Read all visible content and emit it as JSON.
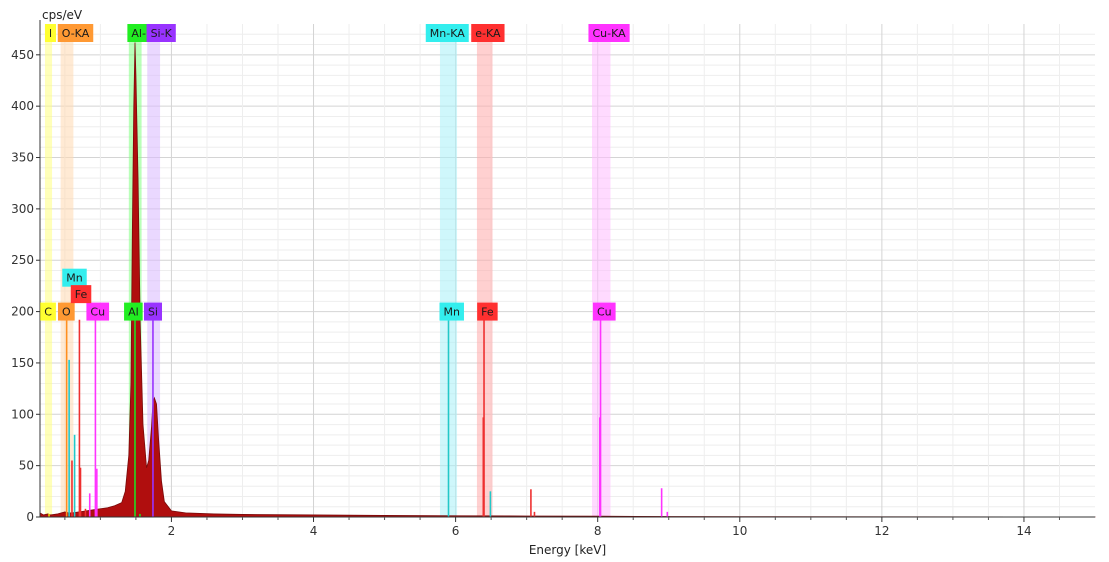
{
  "chart_data": {
    "type": "line",
    "title": "",
    "ylabel": "cps/eV",
    "xlabel": "Energy [keV]",
    "xlim": [
      0.15,
      15.0
    ],
    "ylim": [
      0,
      480
    ],
    "grid": true,
    "x_ticks": [
      2,
      4,
      6,
      8,
      10,
      12,
      14
    ],
    "y_ticks": [
      0,
      50,
      100,
      150,
      200,
      250,
      300,
      350,
      400,
      450
    ],
    "x_tick_labels": [
      "2",
      "4",
      "6",
      "8",
      "10",
      "12",
      "14"
    ],
    "y_tick_labels": [
      "0",
      "50",
      "100",
      "150",
      "200",
      "250",
      "300",
      "350",
      "400",
      "450"
    ],
    "spectrum": {
      "color": "#b00e0e",
      "points": [
        [
          0.15,
          4
        ],
        [
          0.2,
          2
        ],
        [
          0.26,
          3
        ],
        [
          0.3,
          2
        ],
        [
          0.4,
          3
        ],
        [
          0.5,
          5
        ],
        [
          0.55,
          4
        ],
        [
          0.6,
          4
        ],
        [
          0.7,
          5
        ],
        [
          0.8,
          6
        ],
        [
          0.9,
          7
        ],
        [
          1.0,
          8
        ],
        [
          1.1,
          9
        ],
        [
          1.2,
          11
        ],
        [
          1.3,
          14
        ],
        [
          1.35,
          25
        ],
        [
          1.4,
          60
        ],
        [
          1.43,
          130
        ],
        [
          1.45,
          280
        ],
        [
          1.47,
          400
        ],
        [
          1.487,
          462
        ],
        [
          1.5,
          430
        ],
        [
          1.53,
          330
        ],
        [
          1.56,
          190
        ],
        [
          1.6,
          90
        ],
        [
          1.65,
          48
        ],
        [
          1.68,
          55
        ],
        [
          1.72,
          88
        ],
        [
          1.74,
          112
        ],
        [
          1.76,
          116
        ],
        [
          1.79,
          110
        ],
        [
          1.82,
          75
        ],
        [
          1.86,
          35
        ],
        [
          1.9,
          15
        ],
        [
          2.0,
          6
        ],
        [
          2.2,
          4
        ],
        [
          2.6,
          3
        ],
        [
          3.0,
          2.5
        ],
        [
          4.0,
          2
        ],
        [
          5.0,
          1.5
        ],
        [
          6.0,
          1.2
        ],
        [
          7.0,
          1
        ],
        [
          8.0,
          0.8
        ],
        [
          9.0,
          0.5
        ],
        [
          10.0,
          0.3
        ],
        [
          12.0,
          0.2
        ],
        [
          15.0,
          0.1
        ]
      ]
    },
    "peak_lines": [
      {
        "x": 0.277,
        "y": 3,
        "color": "#e8d800"
      },
      {
        "x": 0.525,
        "y": 192,
        "color": "#ff8f1f"
      },
      {
        "x": 0.56,
        "y": 153,
        "color": "#23c8c8"
      },
      {
        "x": 0.6,
        "y": 55,
        "color": "#ee3030"
      },
      {
        "x": 0.637,
        "y": 80,
        "color": "#23c8c8"
      },
      {
        "x": 0.705,
        "y": 192,
        "color": "#ee3030"
      },
      {
        "x": 0.72,
        "y": 48,
        "color": "#ee3030"
      },
      {
        "x": 0.79,
        "y": 8,
        "color": "#ee3030"
      },
      {
        "x": 0.85,
        "y": 23,
        "color": "#ff33ff"
      },
      {
        "x": 0.93,
        "y": 192,
        "color": "#ff33ff"
      },
      {
        "x": 0.95,
        "y": 47,
        "color": "#ff33ff"
      },
      {
        "x": 1.487,
        "y": 192,
        "color": "#22dd22"
      },
      {
        "x": 1.557,
        "y": 3,
        "color": "#22dd22"
      },
      {
        "x": 1.74,
        "y": 192,
        "color": "#9933ff"
      },
      {
        "x": 5.9,
        "y": 192,
        "color": "#23c8c8"
      },
      {
        "x": 6.49,
        "y": 25,
        "color": "#23c8c8"
      },
      {
        "x": 6.4,
        "y": 192,
        "color": "#ee3030"
      },
      {
        "x": 6.39,
        "y": 97,
        "color": "#ee3030"
      },
      {
        "x": 7.06,
        "y": 27,
        "color": "#ee3030"
      },
      {
        "x": 7.11,
        "y": 5,
        "color": "#ee3030"
      },
      {
        "x": 8.04,
        "y": 192,
        "color": "#ff33ff"
      },
      {
        "x": 8.03,
        "y": 97,
        "color": "#ff33ff"
      },
      {
        "x": 8.9,
        "y": 28,
        "color": "#ff33ff"
      },
      {
        "x": 8.98,
        "y": 5,
        "color": "#ff33ff"
      }
    ],
    "bands": [
      {
        "x0": 0.22,
        "x1": 0.32,
        "color": "#ffff80"
      },
      {
        "x0": 0.44,
        "x1": 0.62,
        "color": "#ffd8b0"
      },
      {
        "x0": 1.4,
        "x1": 1.58,
        "color": "#80ff80"
      },
      {
        "x0": 1.66,
        "x1": 1.84,
        "color": "#d8b8ff"
      },
      {
        "x0": 5.78,
        "x1": 6.02,
        "color": "#a8f0f8"
      },
      {
        "x0": 6.3,
        "x1": 6.52,
        "color": "#ffaaaa"
      },
      {
        "x0": 7.92,
        "x1": 8.18,
        "color": "#ffbbff"
      }
    ],
    "top_labels": [
      {
        "text": "l",
        "x": 0.22,
        "color": "#ffff30"
      },
      {
        "text": "O-KA",
        "x": 0.4,
        "color": "#ff9933"
      },
      {
        "text": "Al-",
        "x": 1.38,
        "color": "#22ee22"
      },
      {
        "text": "Si-K",
        "x": 1.65,
        "color": "#9933ff"
      },
      {
        "text": "Mn-KA",
        "x": 5.58,
        "color": "#33eeee"
      },
      {
        "text": "e-KA",
        "x": 6.22,
        "color": "#ff3030"
      },
      {
        "text": "Cu-KA",
        "x": 7.87,
        "color": "#ff33ff"
      }
    ],
    "peak_labels": [
      {
        "text": "C",
        "x": 0.28,
        "y": 200,
        "color": "#ffff30"
      },
      {
        "text": "O",
        "x": 0.53,
        "y": 200,
        "color": "#ff9933"
      },
      {
        "text": "Cu",
        "x": 0.93,
        "y": 200,
        "color": "#ff33ff"
      },
      {
        "text": "Mn",
        "x": 0.59,
        "y": 233,
        "color": "#33eeee"
      },
      {
        "text": "Fe",
        "x": 0.71,
        "y": 217,
        "color": "#ff3030"
      },
      {
        "text": "Al",
        "x": 1.46,
        "y": 200,
        "color": "#22ee22"
      },
      {
        "text": "Si",
        "x": 1.74,
        "y": 200,
        "color": "#9933ff"
      },
      {
        "text": "Mn",
        "x": 5.9,
        "y": 200,
        "color": "#33eeee"
      },
      {
        "text": "Fe",
        "x": 6.43,
        "y": 200,
        "color": "#ff3030"
      },
      {
        "text": "Cu",
        "x": 8.06,
        "y": 200,
        "color": "#ff33ff"
      }
    ]
  }
}
